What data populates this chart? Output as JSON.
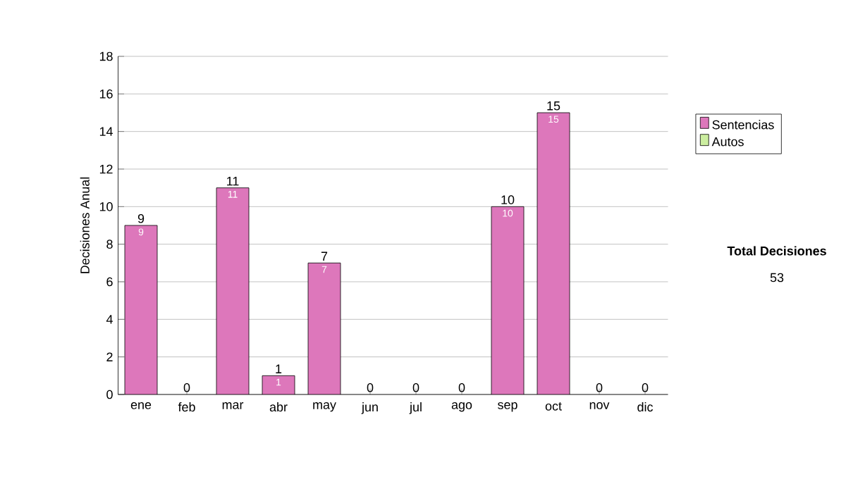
{
  "chart_data": {
    "type": "bar",
    "stacked": true,
    "ylabel": "Decisiones Anual",
    "categories": [
      "ene",
      "feb",
      "mar",
      "abr",
      "may",
      "jun",
      "jul",
      "ago",
      "sep",
      "oct",
      "nov",
      "dic"
    ],
    "series": [
      {
        "name": "Sentencias",
        "color": "#dd77bb",
        "values": [
          9,
          0,
          11,
          1,
          7,
          0,
          0,
          0,
          10,
          15,
          0,
          0
        ],
        "value_labels": [
          "9",
          null,
          "11",
          "1",
          "7",
          null,
          null,
          null,
          "10",
          "15",
          null,
          null
        ]
      },
      {
        "name": "Autos",
        "color": "#cceea0",
        "values": [
          0,
          0,
          0,
          0,
          0,
          0,
          0,
          0,
          0,
          0,
          0,
          0
        ]
      }
    ],
    "totals": [
      "9",
      "0",
      "11",
      "1",
      "7",
      "0",
      "0",
      "0",
      "10",
      "15",
      "0",
      "0"
    ],
    "ylim": [
      0,
      18
    ],
    "yticks": [
      0,
      2,
      4,
      6,
      8,
      10,
      12,
      14,
      16,
      18
    ],
    "grid": "y",
    "legend": "right",
    "annotations": [
      "Total Decisiones",
      "53"
    ]
  }
}
